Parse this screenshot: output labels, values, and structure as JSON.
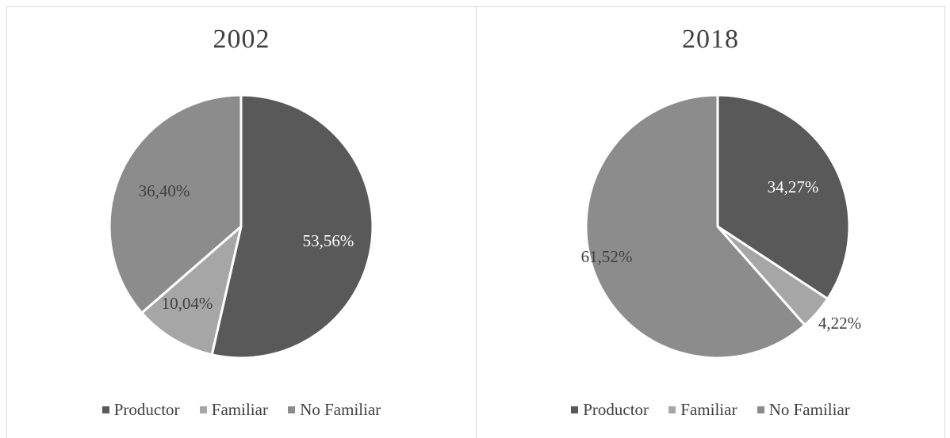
{
  "chart_data": [
    {
      "type": "pie",
      "title": "2002",
      "categories": [
        "Productor",
        "Familiar",
        "No Familiar"
      ],
      "values": [
        53.56,
        10.04,
        36.4
      ],
      "data_labels": [
        "53,56%",
        "10,04%",
        "36,40%"
      ],
      "colors": [
        "#595959",
        "#a6a6a6",
        "#8c8c8c"
      ],
      "legend_position": "bottom"
    },
    {
      "type": "pie",
      "title": "2018",
      "categories": [
        "Productor",
        "Familiar",
        "No Familiar"
      ],
      "values": [
        34.27,
        4.22,
        61.52
      ],
      "data_labels": [
        "34,27%",
        "4,22%",
        "61,52%"
      ],
      "colors": [
        "#595959",
        "#a6a6a6",
        "#8c8c8c"
      ],
      "legend_position": "bottom"
    }
  ]
}
